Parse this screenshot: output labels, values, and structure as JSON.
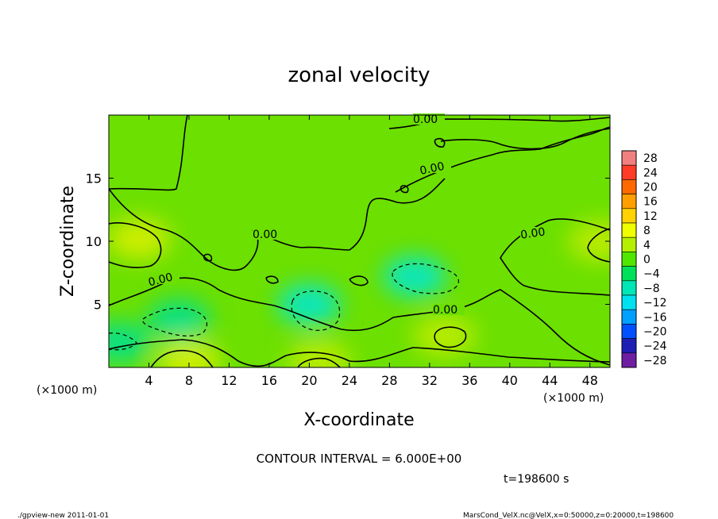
{
  "chart_data": {
    "type": "heatmap",
    "title": "zonal velocity",
    "xlabel": "X-coordinate",
    "ylabel": "Z-coordinate",
    "x_unit": "(×1000 m)",
    "z_unit": "(×1000 m)",
    "xlim": [
      0,
      50
    ],
    "ylim": [
      0,
      20
    ],
    "x_ticks": [
      4,
      8,
      12,
      16,
      20,
      24,
      28,
      32,
      36,
      40,
      44,
      48
    ],
    "y_ticks": [
      5,
      10,
      15
    ],
    "colorbar_levels": [
      28,
      24,
      20,
      16,
      12,
      8,
      4,
      0,
      -4,
      -8,
      -12,
      -16,
      -20,
      -24,
      -28
    ],
    "colorbar_colors": [
      "#f08080",
      "#ff3c28",
      "#ff6a00",
      "#ffa000",
      "#ffd200",
      "#f0ff00",
      "#b4f000",
      "#50e600",
      "#00e15a",
      "#00e6b4",
      "#00e1f0",
      "#00a0ff",
      "#0050ff",
      "#1e1eb4",
      "#6e1ea0"
    ],
    "contour_interval": "CONTOUR INTERVAL = 6.000E+00",
    "contour_labels": [
      "0.00",
      "0.00",
      "0.00",
      "0.00",
      "0.00",
      "0.00"
    ],
    "field_features": [
      {
        "type": "max",
        "x": 3,
        "z": 10.2,
        "value": 8
      },
      {
        "type": "max",
        "x": 49,
        "z": 10,
        "value": 6
      },
      {
        "type": "max",
        "x": 8,
        "z": 0.5,
        "value": 8
      },
      {
        "type": "max",
        "x": 21,
        "z": 0.5,
        "value": 6
      },
      {
        "type": "max",
        "x": 33.5,
        "z": 2.5,
        "value": 7
      },
      {
        "type": "min",
        "x": 20,
        "z": 5,
        "value": -7
      },
      {
        "type": "min",
        "x": 30.5,
        "z": 7.2,
        "value": -7
      },
      {
        "type": "min",
        "x": 7,
        "z": 3.8,
        "value": -6
      },
      {
        "type": "min",
        "x": 1,
        "z": 2,
        "value": -5
      }
    ],
    "grid": false,
    "legend": "right"
  },
  "time_label": "t=198600 s",
  "footer_left": "./gpview-new  2011-01-01",
  "footer_right": "MarsCond_VelX.nc@VelX,x=0:50000,z=0:20000,t=198600"
}
